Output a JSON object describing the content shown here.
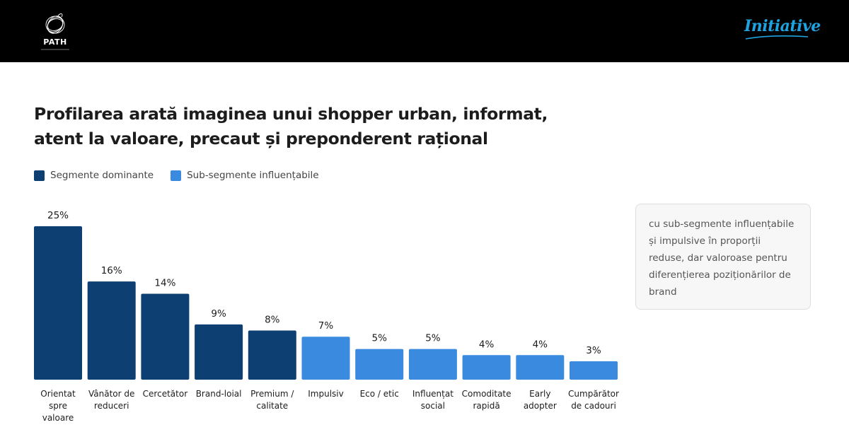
{
  "header": {
    "left_logo": {
      "name": "PATH"
    },
    "right_logo": {
      "name": "Initiative"
    }
  },
  "title": "Profilarea arată imaginea unui shopper urban, informat, atent la valoare, precaut și preponderent rațional",
  "legend": [
    {
      "label": "Segmente dominante",
      "color": "#0d3f73"
    },
    {
      "label": "Sub-segmente influențabile",
      "color": "#3a8be0"
    }
  ],
  "callout": {
    "text": "cu sub-segmente influențabile și impulsive în proporții reduse, dar valoroase pentru diferențierea poziționărilor de brand"
  },
  "chart_data": {
    "type": "bar",
    "categories": [
      [
        "Orientat",
        "spre",
        "valoare"
      ],
      [
        "Vânător de",
        "reduceri"
      ],
      [
        "Cercetător"
      ],
      [
        "Brand-loial"
      ],
      [
        "Premium /",
        "calitate"
      ],
      [
        "Impulsiv"
      ],
      [
        "Eco / etic"
      ],
      [
        "Influențat",
        "social"
      ],
      [
        "Comoditate",
        "rapidă"
      ],
      [
        "Early",
        "adopter"
      ],
      [
        "Cumpărător",
        "de cadouri"
      ]
    ],
    "values": [
      25,
      16,
      14,
      9,
      8,
      7,
      5,
      5,
      4,
      4,
      3
    ],
    "value_labels": [
      "25%",
      "16%",
      "14%",
      "9%",
      "8%",
      "7%",
      "5%",
      "5%",
      "4%",
      "4%",
      "3%"
    ],
    "groups": [
      "dominant",
      "dominant",
      "dominant",
      "dominant",
      "dominant",
      "influenceable",
      "influenceable",
      "influenceable",
      "influenceable",
      "influenceable",
      "influenceable"
    ],
    "group_colors": {
      "dominant": "#0d3f73",
      "influenceable": "#3a8be0"
    },
    "ylim": [
      0,
      25
    ],
    "grid": false,
    "legend_position": "top-left"
  }
}
